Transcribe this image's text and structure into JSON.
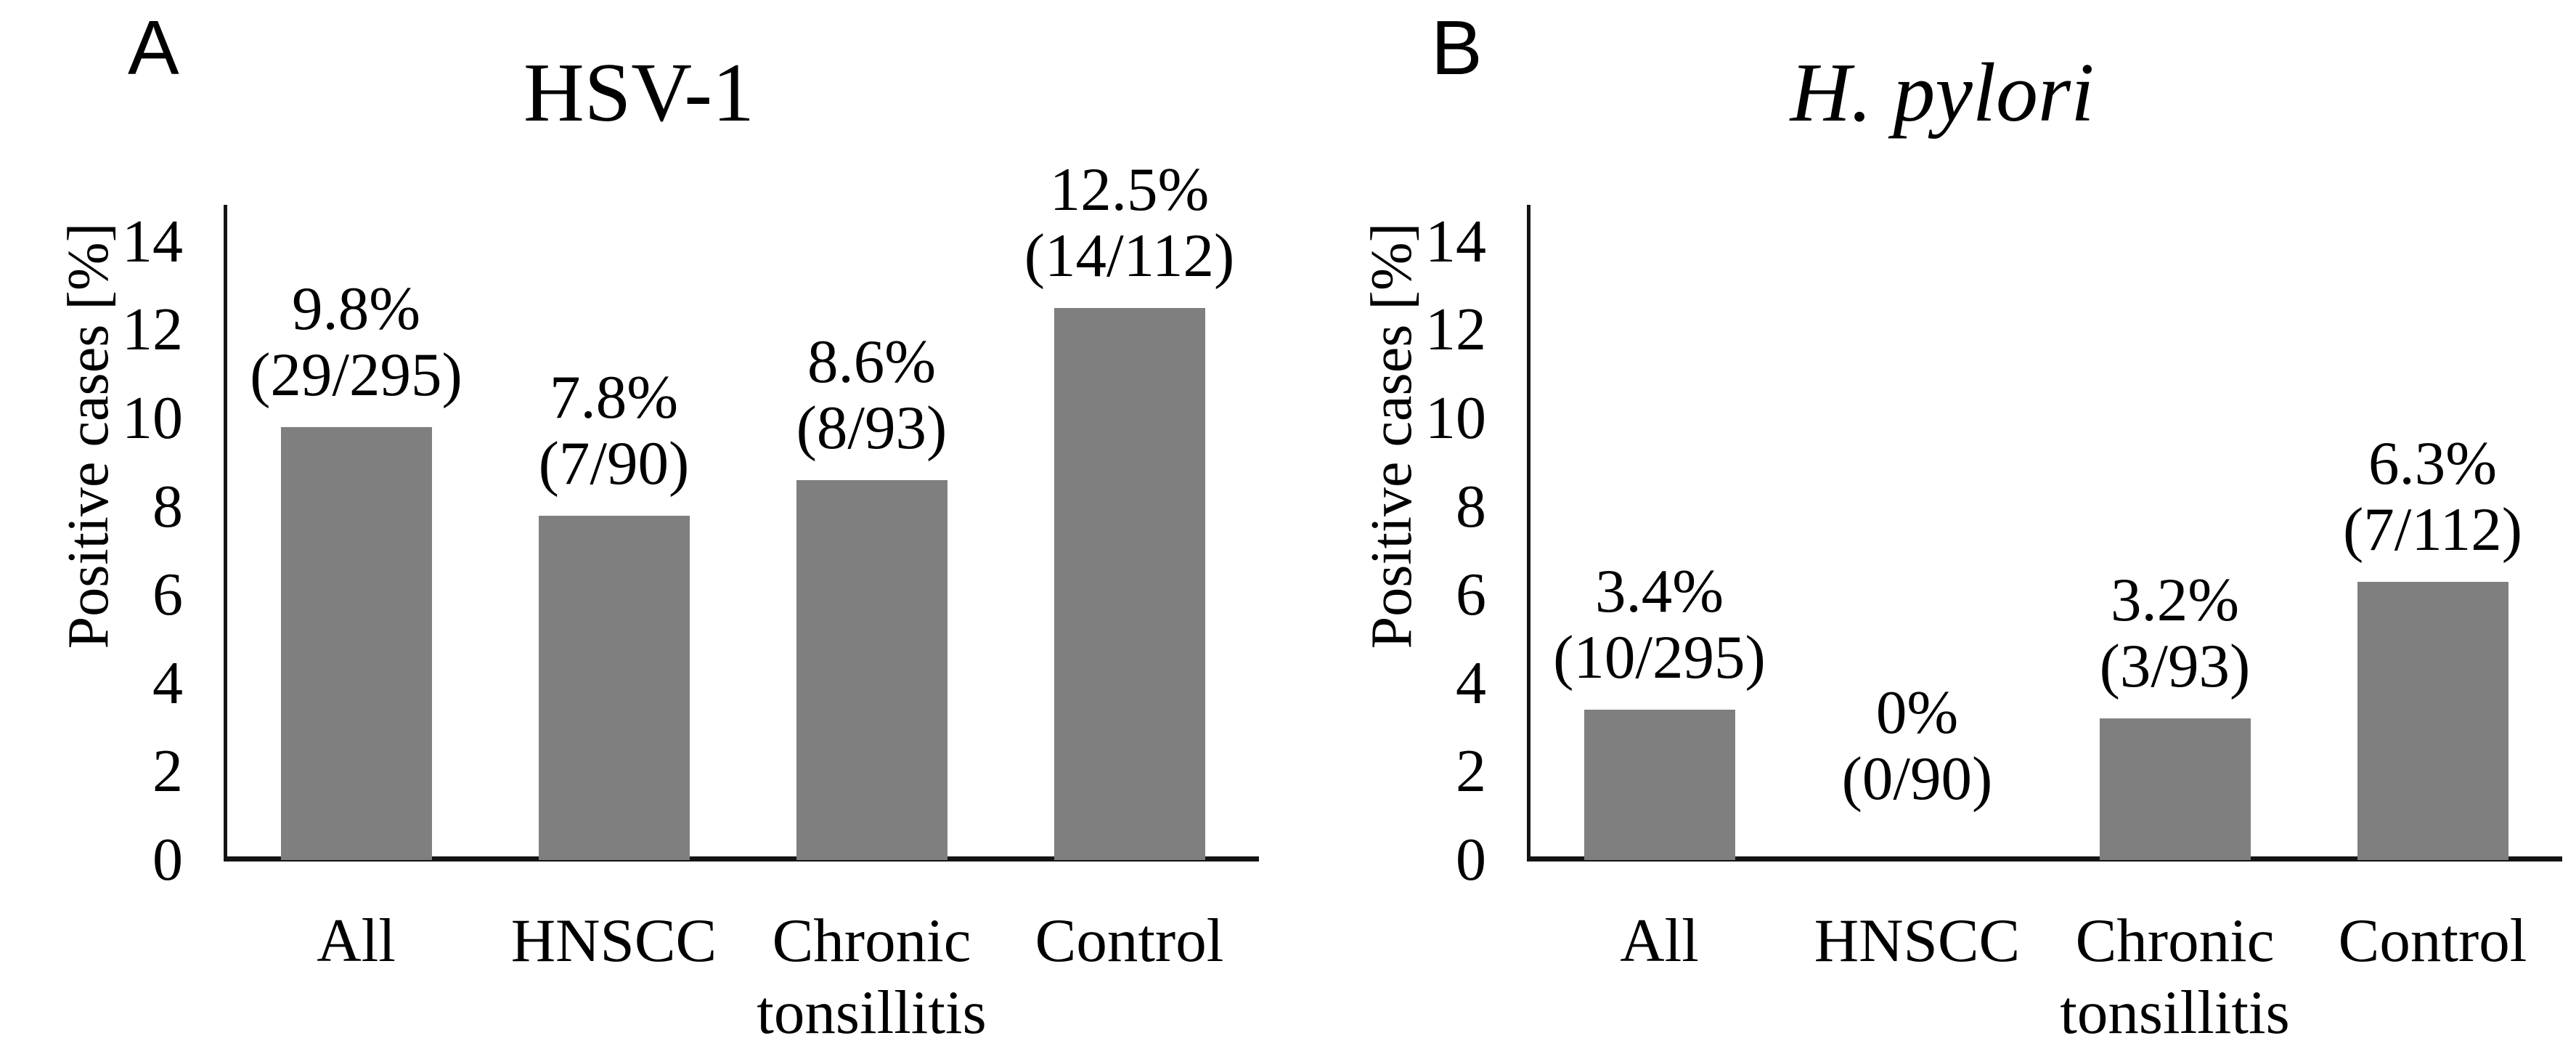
{
  "figure": {
    "background": "#FFFFFF",
    "text_color": "#000000",
    "axis_color": "#141414",
    "bar_color": "#7F7F7F"
  },
  "chart_data": [
    {
      "type": "bar",
      "panel_letter": "A",
      "title": "HSV-1",
      "title_italic": false,
      "ylabel": "Positive cases [%]",
      "xlabel": "",
      "categories": [
        "All",
        "HNSCC",
        "Chronic tonsillitis",
        "Control"
      ],
      "category_lines": [
        [
          "All"
        ],
        [
          "HNSCC"
        ],
        [
          "Chronic",
          "tonsillitis"
        ],
        [
          "Control"
        ]
      ],
      "values": [
        9.8,
        7.8,
        8.6,
        12.5
      ],
      "value_labels": [
        [
          "9.8%",
          "(29/295)"
        ],
        [
          "7.8%",
          "(7/90)"
        ],
        [
          "8.6%",
          "(8/93)"
        ],
        [
          "12.5%",
          "(14/112)"
        ]
      ],
      "yticks": [
        0,
        2,
        4,
        6,
        8,
        10,
        12,
        14
      ],
      "ylim": [
        0,
        15
      ],
      "grid": false,
      "legend": "none",
      "bar_color": "#7F7F7F"
    },
    {
      "type": "bar",
      "panel_letter": "B",
      "title": "H. pylori",
      "title_italic": true,
      "ylabel": "Positive cases [%]",
      "xlabel": "",
      "categories": [
        "All",
        "HNSCC",
        "Chronic tonsillitis",
        "Control"
      ],
      "category_lines": [
        [
          "All"
        ],
        [
          "HNSCC"
        ],
        [
          "Chronic",
          "tonsillitis"
        ],
        [
          "Control"
        ]
      ],
      "values": [
        3.4,
        0,
        3.2,
        6.3
      ],
      "value_labels": [
        [
          "3.4%",
          "(10/295)"
        ],
        [
          "0%",
          "(0/90)"
        ],
        [
          "3.2%",
          "(3/93)"
        ],
        [
          "6.3%",
          "(7/112)"
        ]
      ],
      "yticks": [
        0,
        2,
        4,
        6,
        8,
        10,
        12,
        14
      ],
      "ylim": [
        0,
        15
      ],
      "grid": false,
      "legend": "none",
      "bar_color": "#7F7F7F"
    }
  ]
}
